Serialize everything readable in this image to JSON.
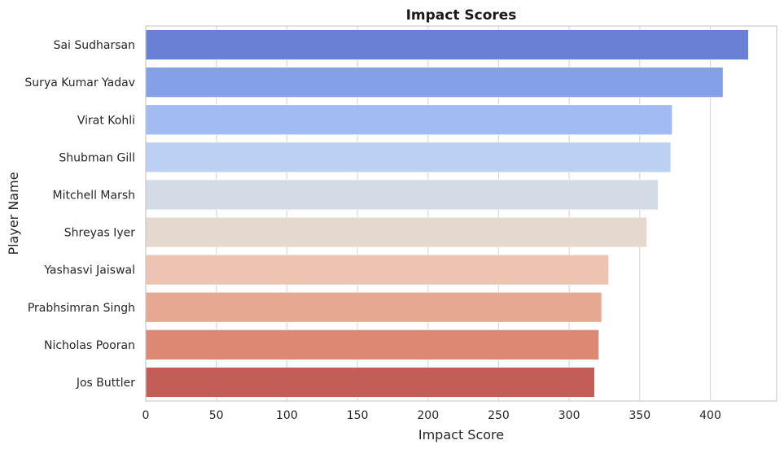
{
  "chart_data": {
    "type": "bar",
    "orientation": "horizontal",
    "title": "Impact Scores",
    "xlabel": "Impact Score",
    "ylabel": "Player Name",
    "xlim": [
      0,
      447
    ],
    "xticks": [
      0,
      50,
      100,
      150,
      200,
      250,
      300,
      350,
      400
    ],
    "grid": true,
    "categories": [
      "Sai Sudharsan",
      "Surya Kumar Yadav",
      "Virat Kohli",
      "Shubman Gill",
      "Mitchell Marsh",
      "Shreyas Iyer",
      "Yashasvi Jaiswal",
      "Prabhsimran Singh",
      "Nicholas Pooran",
      "Jos Buttler"
    ],
    "values": [
      427,
      409,
      373,
      372,
      363,
      355,
      328,
      323,
      321,
      318
    ],
    "colors": [
      "#6a80d5",
      "#84a0e6",
      "#a2bbf3",
      "#bcd0f3",
      "#d3dbe6",
      "#e5d8cf",
      "#ecc4b1",
      "#e7a892",
      "#dc8872",
      "#c35e56"
    ]
  }
}
